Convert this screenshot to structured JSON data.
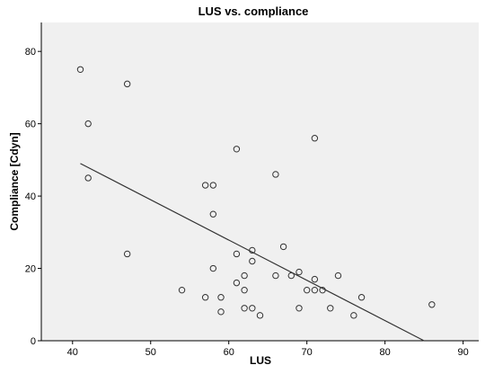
{
  "chart_data": {
    "type": "scatter",
    "title": "LUS vs. compliance",
    "xlabel": "LUS",
    "ylabel": "Compliance [Cdyn]",
    "xlim": [
      36,
      92
    ],
    "ylim": [
      0,
      88
    ],
    "xticks": [
      40,
      50,
      60,
      70,
      80,
      90
    ],
    "yticks": [
      0,
      20,
      40,
      60,
      80
    ],
    "grid": false,
    "legend": "none",
    "colors": {
      "plot_background": "#f0f0f0",
      "points": "#333333",
      "fit_line": "#333333",
      "axes": "#000000",
      "text": "#000000"
    },
    "points": [
      {
        "x": 41,
        "y": 75
      },
      {
        "x": 42,
        "y": 60
      },
      {
        "x": 42,
        "y": 45
      },
      {
        "x": 47,
        "y": 71
      },
      {
        "x": 47,
        "y": 24
      },
      {
        "x": 54,
        "y": 14
      },
      {
        "x": 57,
        "y": 43
      },
      {
        "x": 57,
        "y": 12
      },
      {
        "x": 58,
        "y": 43
      },
      {
        "x": 58,
        "y": 35
      },
      {
        "x": 58,
        "y": 20
      },
      {
        "x": 59,
        "y": 12
      },
      {
        "x": 59,
        "y": 8
      },
      {
        "x": 61,
        "y": 53
      },
      {
        "x": 61,
        "y": 24
      },
      {
        "x": 61,
        "y": 16
      },
      {
        "x": 62,
        "y": 18
      },
      {
        "x": 62,
        "y": 14
      },
      {
        "x": 62,
        "y": 9
      },
      {
        "x": 63,
        "y": 25
      },
      {
        "x": 63,
        "y": 22
      },
      {
        "x": 63,
        "y": 9
      },
      {
        "x": 64,
        "y": 7
      },
      {
        "x": 66,
        "y": 46
      },
      {
        "x": 66,
        "y": 18
      },
      {
        "x": 67,
        "y": 26
      },
      {
        "x": 68,
        "y": 18
      },
      {
        "x": 69,
        "y": 19
      },
      {
        "x": 69,
        "y": 9
      },
      {
        "x": 70,
        "y": 14
      },
      {
        "x": 71,
        "y": 56
      },
      {
        "x": 71,
        "y": 17
      },
      {
        "x": 71,
        "y": 14
      },
      {
        "x": 72,
        "y": 14
      },
      {
        "x": 73,
        "y": 9
      },
      {
        "x": 74,
        "y": 18
      },
      {
        "x": 76,
        "y": 7
      },
      {
        "x": 77,
        "y": 12
      },
      {
        "x": 86,
        "y": 10
      }
    ],
    "fit_line": {
      "x": [
        41,
        85
      ],
      "y": [
        49,
        0
      ]
    }
  }
}
